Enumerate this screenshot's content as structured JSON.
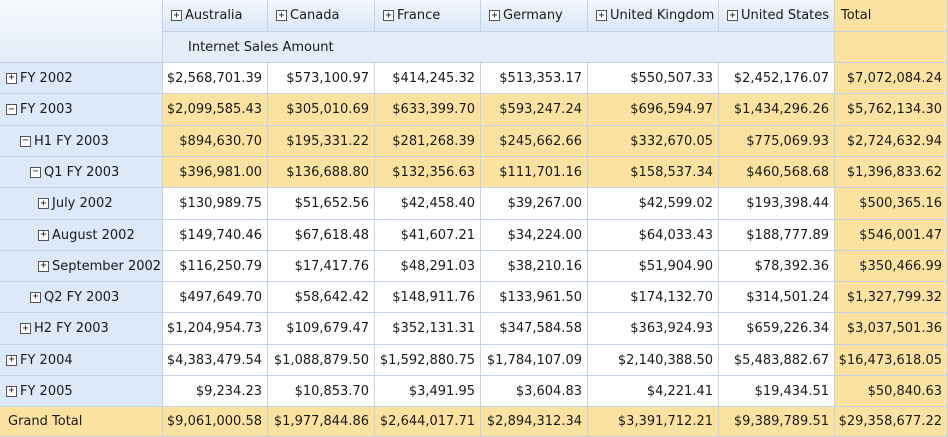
{
  "columns": [
    {
      "label": "Australia",
      "icon": "plus-icon"
    },
    {
      "label": "Canada",
      "icon": "plus-icon"
    },
    {
      "label": "France",
      "icon": "plus-icon"
    },
    {
      "label": "Germany",
      "icon": "plus-icon"
    },
    {
      "label": "United Kingdom",
      "icon": "plus-icon"
    },
    {
      "label": "United States",
      "icon": "plus-icon"
    }
  ],
  "total_label": "Total",
  "measure_label": "Internet Sales Amount",
  "rows": [
    {
      "label": "FY 2002",
      "level": 0,
      "toggle": "+",
      "highlight": false,
      "values": [
        "$2,568,701.39",
        "$573,100.97",
        "$414,245.32",
        "$513,353.17",
        "$550,507.33",
        "$2,452,176.07"
      ],
      "total": "$7,072,084.24"
    },
    {
      "label": "FY 2003",
      "level": 0,
      "toggle": "−",
      "highlight": true,
      "values": [
        "$2,099,585.43",
        "$305,010.69",
        "$633,399.70",
        "$593,247.24",
        "$696,594.97",
        "$1,434,296.26"
      ],
      "total": "$5,762,134.30"
    },
    {
      "label": "H1 FY 2003",
      "level": 1,
      "toggle": "−",
      "highlight": true,
      "values": [
        "$894,630.70",
        "$195,331.22",
        "$281,268.39",
        "$245,662.66",
        "$332,670.05",
        "$775,069.93"
      ],
      "total": "$2,724,632.94"
    },
    {
      "label": "Q1 FY 2003",
      "level": 2,
      "toggle": "−",
      "highlight": true,
      "values": [
        "$396,981.00",
        "$136,688.80",
        "$132,356.63",
        "$111,701.16",
        "$158,537.34",
        "$460,568.68"
      ],
      "total": "$1,396,833.62"
    },
    {
      "label": "July 2002",
      "level": 3,
      "toggle": "+",
      "highlight": false,
      "values": [
        "$130,989.75",
        "$51,652.56",
        "$42,458.40",
        "$39,267.00",
        "$42,599.02",
        "$193,398.44"
      ],
      "total": "$500,365.16"
    },
    {
      "label": "August 2002",
      "level": 3,
      "toggle": "+",
      "highlight": false,
      "values": [
        "$149,740.46",
        "$67,618.48",
        "$41,607.21",
        "$34,224.00",
        "$64,033.43",
        "$188,777.89"
      ],
      "total": "$546,001.47"
    },
    {
      "label": "September 2002",
      "level": 3,
      "toggle": "+",
      "highlight": false,
      "values": [
        "$116,250.79",
        "$17,417.76",
        "$48,291.03",
        "$38,210.16",
        "$51,904.90",
        "$78,392.36"
      ],
      "total": "$350,466.99"
    },
    {
      "label": "Q2 FY 2003",
      "level": 2,
      "toggle": "+",
      "highlight": false,
      "values": [
        "$497,649.70",
        "$58,642.42",
        "$148,911.76",
        "$133,961.50",
        "$174,132.70",
        "$314,501.24"
      ],
      "total": "$1,327,799.32"
    },
    {
      "label": "H2 FY 2003",
      "level": 1,
      "toggle": "+",
      "highlight": false,
      "values": [
        "$1,204,954.73",
        "$109,679.47",
        "$352,131.31",
        "$347,584.58",
        "$363,924.93",
        "$659,226.34"
      ],
      "total": "$3,037,501.36"
    },
    {
      "label": "FY 2004",
      "level": 0,
      "toggle": "+",
      "highlight": false,
      "values": [
        "$4,383,479.54",
        "$1,088,879.50",
        "$1,592,880.75",
        "$1,784,107.09",
        "$2,140,388.50",
        "$5,483,882.67"
      ],
      "total": "$16,473,618.05"
    },
    {
      "label": "FY 2005",
      "level": 0,
      "toggle": "+",
      "highlight": false,
      "values": [
        "$9,234.23",
        "$10,853.70",
        "$3,491.95",
        "$3,604.83",
        "$4,221.41",
        "$19,434.51"
      ],
      "total": "$50,840.63"
    }
  ],
  "grand_total": {
    "label": "Grand Total",
    "values": [
      "$9,061,000.58",
      "$1,977,844.86",
      "$2,644,017.71",
      "$2,894,312.34",
      "$3,391,712.21",
      "$9,389,789.51"
    ],
    "total": "$29,358,677.22"
  },
  "colors": {
    "highlight": "#fbe2a1",
    "header": "#dbe6f6",
    "row_header": "#dde8f8",
    "grid": "#c5d3e8"
  }
}
